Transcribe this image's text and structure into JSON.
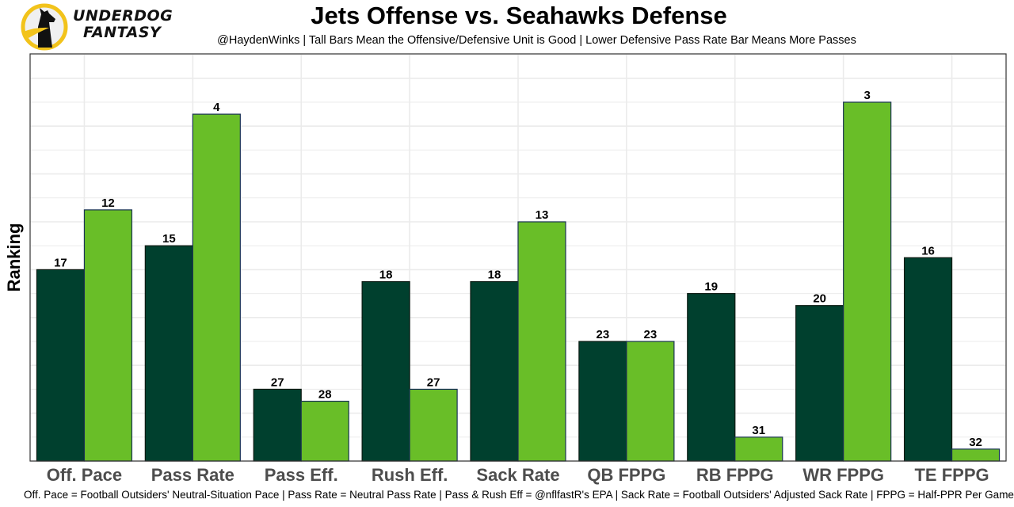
{
  "brand": {
    "name_line1": "UNDERDOG",
    "name_line2": "FANTASY",
    "logo_icon": "dog-silhouette-icon",
    "logo_ring_color": "#f2c31b"
  },
  "header": {
    "title": "Jets Offense vs. Seahawks Defense",
    "subtitle": "@HaydenWinks | Tall Bars Mean the Offensive/Defensive Unit is Good | Lower Defensive Pass Rate Bar Means More Passes"
  },
  "footer": {
    "caption": "Off. Pace = Football Outsiders' Neutral-Situation Pace | Pass Rate = Neutral Pass Rate | Pass & Rush Eff = @nflfastR's EPA | Sack Rate = Football Outsiders' Adjusted Sack Rate | FPPG = Half-PPR Per Game"
  },
  "chart_data": {
    "type": "bar",
    "title": "Jets Offense vs. Seahawks Defense",
    "xlabel": "",
    "ylabel": "Ranking",
    "y_semantics": "bar height = 33 - rank (rank 1 tallest)",
    "rank_range": [
      1,
      32
    ],
    "grid": true,
    "legend": "none",
    "categories": [
      "Off. Pace",
      "Pass Rate",
      "Pass Eff.",
      "Rush Eff.",
      "Sack Rate",
      "QB FPPG",
      "RB FPPG",
      "WR FPPG",
      "TE FPPG"
    ],
    "series": [
      {
        "name": "Jets Offense",
        "color": "#00402e",
        "values": [
          17,
          15,
          27,
          18,
          18,
          23,
          19,
          20,
          16
        ]
      },
      {
        "name": "Seahawks Defense",
        "color": "#69be28",
        "values": [
          12,
          4,
          28,
          27,
          13,
          23,
          31,
          3,
          32
        ]
      }
    ]
  }
}
